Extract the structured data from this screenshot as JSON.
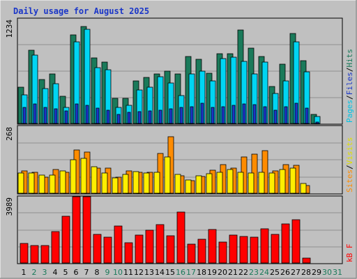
{
  "chart_data": {
    "type": "bar",
    "title": "Daily usage for August 2025",
    "days": [
      "1",
      "2",
      "3",
      "4",
      "5",
      "6",
      "7",
      "8",
      "9",
      "10",
      "11",
      "12",
      "13",
      "14",
      "15",
      "16",
      "17",
      "18",
      "19",
      "20",
      "21",
      "22",
      "23",
      "24",
      "25",
      "26",
      "27",
      "28",
      "29",
      "30",
      "31"
    ],
    "weekend_days": [
      "2",
      "3",
      "9",
      "10",
      "16",
      "17",
      "23",
      "24",
      "30",
      "31"
    ],
    "panels": {
      "hits_files_pages": {
        "ymax": 1234,
        "ymax_label": "1234",
        "axis_label_parts": [
          "Pages",
          "/",
          "Files",
          "/",
          "Hits"
        ],
        "series": [
          {
            "name": "Hits",
            "color": "#1a7a5a",
            "values": [
              425,
              860,
              520,
              580,
              320,
              1045,
              1146,
              770,
              720,
              295,
              295,
              500,
              540,
              580,
              620,
              580,
              790,
              760,
              590,
              820,
              820,
              1100,
              890,
              790,
              440,
              700,
              1060,
              740,
              105,
              0,
              0
            ]
          },
          {
            "name": "Files",
            "color": "#00d5f3",
            "values": [
              340,
              805,
              415,
              470,
              190,
              960,
              1110,
              660,
              630,
              190,
              210,
              395,
              425,
              550,
              475,
              325,
              580,
              615,
              505,
              765,
              780,
              730,
              585,
              725,
              355,
              500,
              960,
              610,
              85,
              0,
              0
            ]
          },
          {
            "name": "Pages",
            "color": "#1a36c8",
            "values": [
              190,
              230,
              190,
              170,
              145,
              230,
              210,
              180,
              160,
              110,
              130,
              140,
              150,
              160,
              170,
              190,
              200,
              240,
              190,
              200,
              210,
              230,
              220,
              200,
              160,
              200,
              240,
              180,
              20,
              0,
              0
            ]
          }
        ]
      },
      "visits_sites": {
        "ymax": 268,
        "ymax_label": "268",
        "axis_label_parts": [
          "Sites",
          "/",
          "Visits"
        ],
        "series": [
          {
            "name": "Sites",
            "color": "#ff8c00",
            "values": [
              90,
              85,
              65,
              95,
              85,
              172,
              165,
              100,
              100,
              65,
              88,
              85,
              85,
              158,
              226,
              70,
              50,
              68,
              92,
              114,
              100,
              146,
              156,
              170,
              88,
              114,
              112,
              32,
              0,
              0,
              0
            ]
          },
          {
            "name": "Visits",
            "color": "#ffee00",
            "values": [
              80,
              80,
              72,
              72,
              88,
              135,
              140,
              106,
              80,
              62,
              76,
              87,
              80,
              85,
              145,
              75,
              52,
              70,
              78,
              84,
              95,
              85,
              81,
              85,
              80,
              95,
              100,
              38,
              0,
              0,
              0
            ]
          }
        ]
      },
      "kbytes": {
        "ymax": 3989,
        "ymax_label": "3989",
        "axis_label_parts": [
          "kB",
          "F"
        ],
        "series": [
          {
            "name": "kB F",
            "color": "#ff0000",
            "values": [
              1155,
              1055,
              1060,
              1870,
              2800,
              3989,
              3989,
              1730,
              1550,
              2220,
              1200,
              1680,
              1960,
              2310,
              1620,
              3060,
              1120,
              1430,
              2000,
              1280,
              1670,
              1600,
              1550,
              2050,
              1720,
              2350,
              2600,
              280,
              0,
              0,
              0
            ]
          }
        ]
      }
    },
    "colors": {
      "background": "#c0c0c0",
      "title": "#1a36c8",
      "weekday_label": "#000000",
      "weekend_label": "#1a7a5a",
      "hits_label": "#1a7a5a",
      "files_label": "#1a36c8",
      "pages_label": "#00c4e6",
      "sites_label": "#ff8c00",
      "visits_label": "#e0e000",
      "kb_label": "#ff0000",
      "slash": "#000000"
    }
  }
}
